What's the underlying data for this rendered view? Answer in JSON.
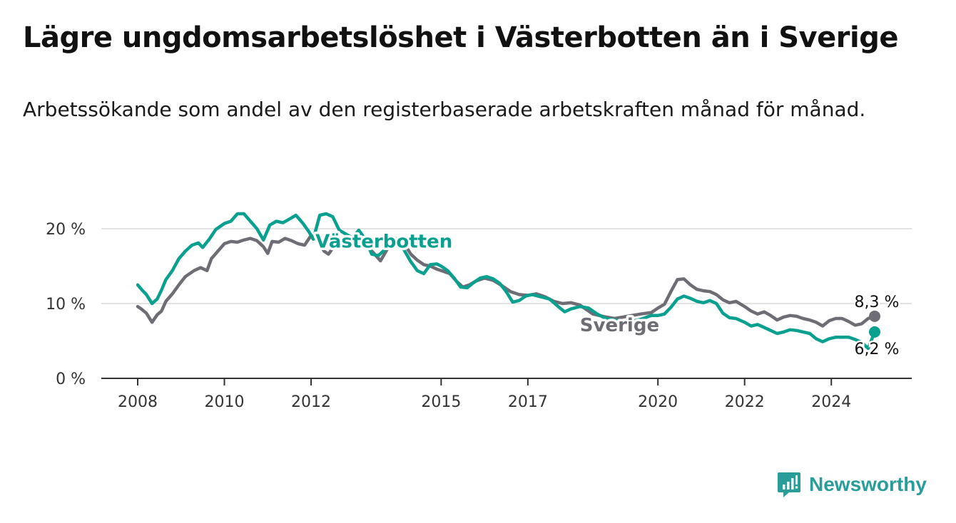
{
  "title": "Lägre ungdomsarbetslöshet i Västerbotten än i Sverige",
  "subtitle": "Arbetssökande som andel av den registerbaserade arbetskraften månad för månad.",
  "brand": {
    "name": "Newsworthy",
    "icon": "newsworthy-logo-icon"
  },
  "colors": {
    "vasterbotten": "#0aa08f",
    "sverige": "#6e6d75",
    "grid": "#d9d9d9",
    "axis": "#333333",
    "brand": "#2a9d9a"
  },
  "chart_data": {
    "type": "line",
    "ylim": [
      0,
      20
    ],
    "yticks": [
      0,
      10,
      20
    ],
    "ytick_labels": [
      "0 %",
      "10 %",
      "20 %"
    ],
    "xtick_values": [
      2008,
      2010,
      2012,
      2015,
      2017,
      2020,
      2022,
      2024
    ],
    "xtick_labels": [
      "2008",
      "2010",
      "2012",
      "2015",
      "2017",
      "2020",
      "2022",
      "2024"
    ],
    "grid": "horizontal",
    "series": [
      {
        "name": "Sverige",
        "end_label": "8,3 %",
        "points": [
          [
            2008.0,
            9.6
          ],
          [
            2008.1,
            9.2
          ],
          [
            2008.2,
            8.7
          ],
          [
            2008.33,
            7.5
          ],
          [
            2008.45,
            8.5
          ],
          [
            2008.55,
            9.0
          ],
          [
            2008.65,
            10.3
          ],
          [
            2008.8,
            11.3
          ],
          [
            2008.95,
            12.5
          ],
          [
            2009.1,
            13.6
          ],
          [
            2009.3,
            14.4
          ],
          [
            2009.45,
            14.8
          ],
          [
            2009.6,
            14.4
          ],
          [
            2009.7,
            16.0
          ],
          [
            2009.85,
            17.0
          ],
          [
            2010.0,
            18.0
          ],
          [
            2010.15,
            18.3
          ],
          [
            2010.3,
            18.2
          ],
          [
            2010.45,
            18.5
          ],
          [
            2010.6,
            18.7
          ],
          [
            2010.75,
            18.4
          ],
          [
            2010.9,
            17.6
          ],
          [
            2011.0,
            16.7
          ],
          [
            2011.1,
            18.3
          ],
          [
            2011.25,
            18.2
          ],
          [
            2011.4,
            18.7
          ],
          [
            2011.55,
            18.4
          ],
          [
            2011.7,
            18.0
          ],
          [
            2011.85,
            17.8
          ],
          [
            2012.0,
            19.1
          ],
          [
            2012.15,
            18.4
          ],
          [
            2012.3,
            17.0
          ],
          [
            2012.4,
            16.6
          ],
          [
            2012.55,
            17.8
          ],
          [
            2012.7,
            18.5
          ],
          [
            2012.85,
            18.8
          ],
          [
            2013.0,
            19.0
          ],
          [
            2013.15,
            19.0
          ],
          [
            2013.3,
            17.6
          ],
          [
            2013.45,
            16.7
          ],
          [
            2013.6,
            15.7
          ],
          [
            2013.75,
            17.2
          ],
          [
            2013.9,
            18.6
          ],
          [
            2014.0,
            18.7
          ],
          [
            2014.15,
            18.0
          ],
          [
            2014.3,
            16.6
          ],
          [
            2014.45,
            15.8
          ],
          [
            2014.6,
            15.2
          ],
          [
            2014.75,
            15.0
          ],
          [
            2014.9,
            14.6
          ],
          [
            2015.0,
            14.4
          ],
          [
            2015.2,
            14.0
          ],
          [
            2015.35,
            13.0
          ],
          [
            2015.5,
            12.2
          ],
          [
            2015.65,
            12.5
          ],
          [
            2015.8,
            13.0
          ],
          [
            2016.0,
            13.4
          ],
          [
            2016.2,
            13.1
          ],
          [
            2016.4,
            12.4
          ],
          [
            2016.6,
            11.6
          ],
          [
            2016.8,
            11.2
          ],
          [
            2017.0,
            11.1
          ],
          [
            2017.2,
            11.3
          ],
          [
            2017.4,
            10.9
          ],
          [
            2017.6,
            10.3
          ],
          [
            2017.8,
            10.0
          ],
          [
            2018.0,
            10.1
          ],
          [
            2018.2,
            9.8
          ],
          [
            2018.5,
            8.6
          ],
          [
            2018.8,
            8.2
          ],
          [
            2019.0,
            8.0
          ],
          [
            2019.3,
            8.3
          ],
          [
            2019.6,
            8.6
          ],
          [
            2019.85,
            8.8
          ],
          [
            2020.0,
            9.4
          ],
          [
            2020.15,
            9.9
          ],
          [
            2020.3,
            11.6
          ],
          [
            2020.45,
            13.2
          ],
          [
            2020.6,
            13.3
          ],
          [
            2020.75,
            12.5
          ],
          [
            2020.9,
            11.9
          ],
          [
            2021.05,
            11.7
          ],
          [
            2021.2,
            11.6
          ],
          [
            2021.35,
            11.2
          ],
          [
            2021.5,
            10.5
          ],
          [
            2021.65,
            10.1
          ],
          [
            2021.8,
            10.3
          ],
          [
            2022.0,
            9.6
          ],
          [
            2022.15,
            9.0
          ],
          [
            2022.3,
            8.6
          ],
          [
            2022.45,
            8.9
          ],
          [
            2022.6,
            8.4
          ],
          [
            2022.75,
            7.8
          ],
          [
            2022.9,
            8.2
          ],
          [
            2023.05,
            8.4
          ],
          [
            2023.2,
            8.3
          ],
          [
            2023.35,
            8.0
          ],
          [
            2023.5,
            7.8
          ],
          [
            2023.65,
            7.5
          ],
          [
            2023.8,
            7.0
          ],
          [
            2023.95,
            7.7
          ],
          [
            2024.1,
            8.0
          ],
          [
            2024.25,
            8.0
          ],
          [
            2024.4,
            7.6
          ],
          [
            2024.55,
            7.1
          ],
          [
            2024.7,
            7.3
          ],
          [
            2024.85,
            8.0
          ],
          [
            2025.0,
            8.3
          ]
        ]
      },
      {
        "name": "Västerbotten",
        "end_label": "6,2 %",
        "points": [
          [
            2008.0,
            12.5
          ],
          [
            2008.1,
            11.8
          ],
          [
            2008.2,
            11.2
          ],
          [
            2008.33,
            10.0
          ],
          [
            2008.45,
            10.6
          ],
          [
            2008.55,
            11.8
          ],
          [
            2008.65,
            13.2
          ],
          [
            2008.8,
            14.4
          ],
          [
            2008.95,
            16.0
          ],
          [
            2009.1,
            17.0
          ],
          [
            2009.25,
            17.8
          ],
          [
            2009.4,
            18.1
          ],
          [
            2009.5,
            17.5
          ],
          [
            2009.65,
            18.6
          ],
          [
            2009.8,
            19.9
          ],
          [
            2010.0,
            20.7
          ],
          [
            2010.15,
            21.0
          ],
          [
            2010.3,
            22.0
          ],
          [
            2010.45,
            22.0
          ],
          [
            2010.6,
            21.0
          ],
          [
            2010.75,
            20.0
          ],
          [
            2010.9,
            18.5
          ],
          [
            2011.05,
            20.5
          ],
          [
            2011.2,
            21.0
          ],
          [
            2011.35,
            20.8
          ],
          [
            2011.5,
            21.3
          ],
          [
            2011.65,
            21.8
          ],
          [
            2011.8,
            20.8
          ],
          [
            2011.95,
            19.6
          ],
          [
            2012.05,
            18.6
          ],
          [
            2012.2,
            21.8
          ],
          [
            2012.35,
            22.0
          ],
          [
            2012.5,
            21.6
          ],
          [
            2012.65,
            19.8
          ],
          [
            2012.8,
            19.3
          ],
          [
            2012.95,
            18.8
          ],
          [
            2013.1,
            19.8
          ],
          [
            2013.25,
            18.6
          ],
          [
            2013.4,
            16.6
          ],
          [
            2013.55,
            16.4
          ],
          [
            2013.7,
            17.2
          ],
          [
            2013.85,
            18.3
          ],
          [
            2014.0,
            18.2
          ],
          [
            2014.15,
            17.1
          ],
          [
            2014.3,
            15.6
          ],
          [
            2014.45,
            14.4
          ],
          [
            2014.6,
            14.0
          ],
          [
            2014.75,
            15.2
          ],
          [
            2014.9,
            15.3
          ],
          [
            2015.0,
            15.0
          ],
          [
            2015.15,
            14.4
          ],
          [
            2015.3,
            13.4
          ],
          [
            2015.45,
            12.2
          ],
          [
            2015.6,
            12.1
          ],
          [
            2015.75,
            12.8
          ],
          [
            2015.9,
            13.4
          ],
          [
            2016.05,
            13.6
          ],
          [
            2016.2,
            13.3
          ],
          [
            2016.35,
            12.7
          ],
          [
            2016.5,
            11.6
          ],
          [
            2016.65,
            10.2
          ],
          [
            2016.8,
            10.4
          ],
          [
            2016.95,
            11.0
          ],
          [
            2017.1,
            11.2
          ],
          [
            2017.3,
            10.9
          ],
          [
            2017.5,
            10.6
          ],
          [
            2017.7,
            9.6
          ],
          [
            2017.85,
            8.9
          ],
          [
            2018.0,
            9.3
          ],
          [
            2018.2,
            9.6
          ],
          [
            2018.4,
            9.4
          ],
          [
            2018.6,
            8.6
          ],
          [
            2018.8,
            8.0
          ],
          [
            2019.0,
            7.8
          ],
          [
            2019.3,
            7.5
          ],
          [
            2019.6,
            7.9
          ],
          [
            2019.85,
            8.4
          ],
          [
            2020.0,
            8.4
          ],
          [
            2020.15,
            8.6
          ],
          [
            2020.3,
            9.5
          ],
          [
            2020.45,
            10.6
          ],
          [
            2020.6,
            11.0
          ],
          [
            2020.75,
            10.7
          ],
          [
            2020.9,
            10.3
          ],
          [
            2021.05,
            10.1
          ],
          [
            2021.2,
            10.4
          ],
          [
            2021.35,
            10.0
          ],
          [
            2021.5,
            8.7
          ],
          [
            2021.65,
            8.1
          ],
          [
            2021.8,
            8.0
          ],
          [
            2022.0,
            7.5
          ],
          [
            2022.15,
            7.0
          ],
          [
            2022.3,
            7.2
          ],
          [
            2022.45,
            6.8
          ],
          [
            2022.6,
            6.4
          ],
          [
            2022.75,
            6.0
          ],
          [
            2022.9,
            6.2
          ],
          [
            2023.05,
            6.5
          ],
          [
            2023.2,
            6.4
          ],
          [
            2023.35,
            6.2
          ],
          [
            2023.5,
            6.0
          ],
          [
            2023.65,
            5.3
          ],
          [
            2023.8,
            4.9
          ],
          [
            2023.95,
            5.3
          ],
          [
            2024.1,
            5.5
          ],
          [
            2024.25,
            5.5
          ],
          [
            2024.4,
            5.5
          ],
          [
            2024.55,
            5.2
          ],
          [
            2024.7,
            4.8
          ],
          [
            2024.85,
            4.0
          ],
          [
            2025.0,
            6.2
          ]
        ]
      }
    ],
    "inline_labels": [
      "Västerbotten",
      "Sverige"
    ]
  }
}
